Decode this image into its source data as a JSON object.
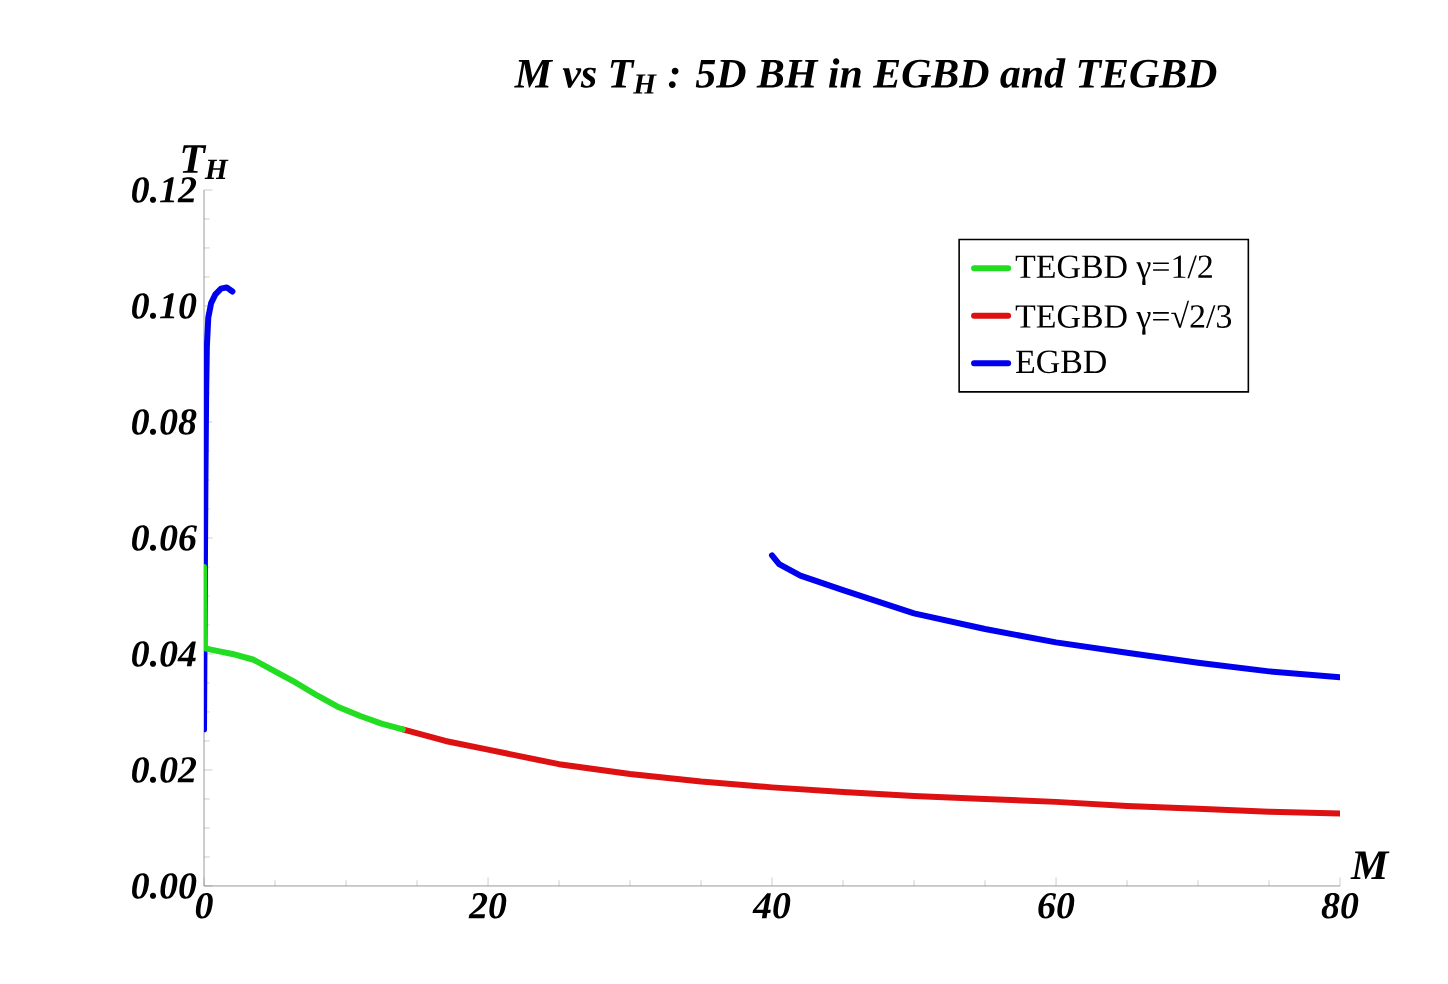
{
  "chart_data": {
    "type": "line",
    "title": "M vs T$_{H}$ : 5D BH in EGBD and TEGBD",
    "xlabel": "M",
    "ylabel": "T$_{H}$",
    "xlim": [
      0,
      80
    ],
    "ylim": [
      0,
      0.12
    ],
    "xticks": [
      0,
      20,
      40,
      60,
      80
    ],
    "yticks": [
      {
        "value": 0,
        "label": "0.00"
      },
      {
        "value": 0.02,
        "label": "0.02"
      },
      {
        "value": 0.04,
        "label": "0.04"
      },
      {
        "value": 0.06,
        "label": "0.06"
      },
      {
        "value": 0.08,
        "label": "0.08"
      },
      {
        "value": 0.1,
        "label": "0.10"
      },
      {
        "value": 0.12,
        "label": "0.12"
      }
    ],
    "legend": "top right",
    "series": [
      {
        "name": "TEGBD γ=1/2",
        "color": "#22dd22",
        "x": [
          0,
          0,
          1,
          2,
          3.5,
          5,
          6.5,
          8,
          9.5,
          11,
          12.5,
          14
        ],
        "values": [
          0.055,
          0.041,
          0.0405,
          0.04,
          0.039,
          0.037,
          0.035,
          0.0328,
          0.0308,
          0.0293,
          0.028,
          0.027
        ]
      },
      {
        "name": "TEGBD γ=√2/3",
        "color": "#dd1111",
        "x": [
          14,
          17,
          20,
          25,
          30,
          35,
          40,
          45,
          50,
          55,
          60,
          65,
          70,
          75,
          80
        ],
        "values": [
          0.027,
          0.025,
          0.0235,
          0.021,
          0.0193,
          0.018,
          0.017,
          0.0162,
          0.0155,
          0.015,
          0.0145,
          0.0138,
          0.0133,
          0.0128,
          0.0125
        ]
      },
      {
        "name": "EGBD",
        "color": "#0000ee",
        "x": [
          0,
          0.05,
          0.1,
          0.15,
          0.2,
          0.3,
          0.5,
          0.8,
          1.2,
          1.6,
          2,
          20,
          40,
          40.5,
          42,
          45,
          50,
          55,
          60,
          65,
          70,
          75,
          80
        ],
        "values": [
          0.027,
          0.05,
          0.07,
          0.085,
          0.093,
          0.098,
          0.1005,
          0.102,
          0.103,
          0.1032,
          0.1025,
          null,
          0.057,
          0.0555,
          0.0535,
          0.051,
          0.047,
          0.0443,
          0.042,
          0.0402,
          0.0385,
          0.037,
          0.036
        ]
      }
    ]
  }
}
